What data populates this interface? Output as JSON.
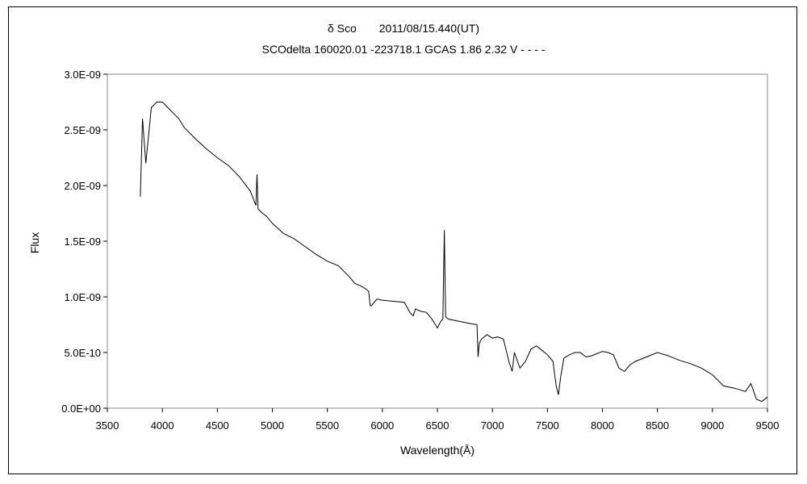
{
  "chart_data": {
    "type": "line",
    "title": "δ Sco　　2011/08/15.440(UT)",
    "subtitle": "SCOdelta 160020.01 -223718.1 GCAS 1.86 2.32 V - - - -",
    "xlabel": "Wavelength(Å)",
    "ylabel": "Flux",
    "xlim": [
      3500,
      9500
    ],
    "ylim": [
      0,
      3e-09
    ],
    "x_ticks": [
      "3500",
      "4000",
      "4500",
      "5000",
      "5500",
      "6000",
      "6500",
      "7000",
      "7500",
      "8000",
      "8500",
      "9000",
      "9500"
    ],
    "y_ticks": [
      "0.0E+00",
      "5.0E-10",
      "1.0E-09",
      "1.5E-09",
      "2.0E-09",
      "2.5E-09",
      "3.0E-09"
    ],
    "grid": false,
    "legend": "none",
    "line_color": "#000000",
    "series": [
      {
        "x": [
          3800,
          3820,
          3850,
          3880,
          3900,
          3950,
          4000,
          4050,
          4100,
          4150,
          4200,
          4300,
          4400,
          4500,
          4600,
          4700,
          4800,
          4850,
          4861,
          4870,
          4900,
          4950,
          5000,
          5100,
          5200,
          5300,
          5400,
          5500,
          5600,
          5700,
          5750,
          5800,
          5850,
          5875,
          5890,
          5900,
          5950,
          6000,
          6100,
          6200,
          6250,
          6280,
          6300,
          6350,
          6400,
          6450,
          6500,
          6530,
          6550,
          6563,
          6575,
          6600,
          6700,
          6800,
          6860,
          6870,
          6880,
          6900,
          6950,
          7000,
          7050,
          7100,
          7150,
          7180,
          7200,
          7250,
          7300,
          7350,
          7400,
          7450,
          7500,
          7550,
          7580,
          7600,
          7620,
          7650,
          7700,
          7750,
          7800,
          7850,
          7900,
          7950,
          8000,
          8050,
          8100,
          8150,
          8200,
          8250,
          8300,
          8400,
          8500,
          8600,
          8700,
          8800,
          8900,
          9000,
          9100,
          9200,
          9300,
          9350,
          9400,
          9450,
          9500
        ],
        "y": [
          1.9e-09,
          2.6e-09,
          2.2e-09,
          2.5e-09,
          2.7e-09,
          2.75e-09,
          2.75e-09,
          2.7e-09,
          2.65e-09,
          2.6e-09,
          2.52e-09,
          2.42e-09,
          2.33e-09,
          2.25e-09,
          2.18e-09,
          2.08e-09,
          1.95e-09,
          1.82e-09,
          2.1e-09,
          1.79e-09,
          1.76e-09,
          1.72e-09,
          1.66e-09,
          1.57e-09,
          1.52e-09,
          1.45e-09,
          1.38e-09,
          1.32e-09,
          1.28e-09,
          1.18e-09,
          1.12e-09,
          1.1e-09,
          1.07e-09,
          1.05e-09,
          9.2e-10,
          9.2e-10,
          9.8e-10,
          9.7e-10,
          9.6e-10,
          9.5e-10,
          8.6e-10,
          8.3e-10,
          8.9e-10,
          8.7e-10,
          8.6e-10,
          8e-10,
          7.2e-10,
          7.8e-10,
          8e-10,
          1.6e-09,
          8.2e-10,
          8e-10,
          7.8e-10,
          7.6e-10,
          7.5e-10,
          4.6e-10,
          5.8e-10,
          6.2e-10,
          6.6e-10,
          6.3e-10,
          6.4e-10,
          6.2e-10,
          4.2e-10,
          3.3e-10,
          5e-10,
          3.6e-10,
          4.2e-10,
          5.3e-10,
          5.6e-10,
          5.2e-10,
          4.8e-10,
          4.2e-10,
          2e-10,
          1.2e-10,
          2.8e-10,
          4.5e-10,
          4.8e-10,
          5e-10,
          5e-10,
          4.6e-10,
          4.7e-10,
          4.9e-10,
          5.1e-10,
          5e-10,
          4.8e-10,
          3.6e-10,
          3.3e-10,
          3.9e-10,
          4.2e-10,
          4.6e-10,
          5e-10,
          4.7e-10,
          4.3e-10,
          4e-10,
          3.6e-10,
          3e-10,
          2e-10,
          1.8e-10,
          1.5e-10,
          2.2e-10,
          8e-11,
          6e-11,
          1e-10
        ]
      }
    ]
  }
}
